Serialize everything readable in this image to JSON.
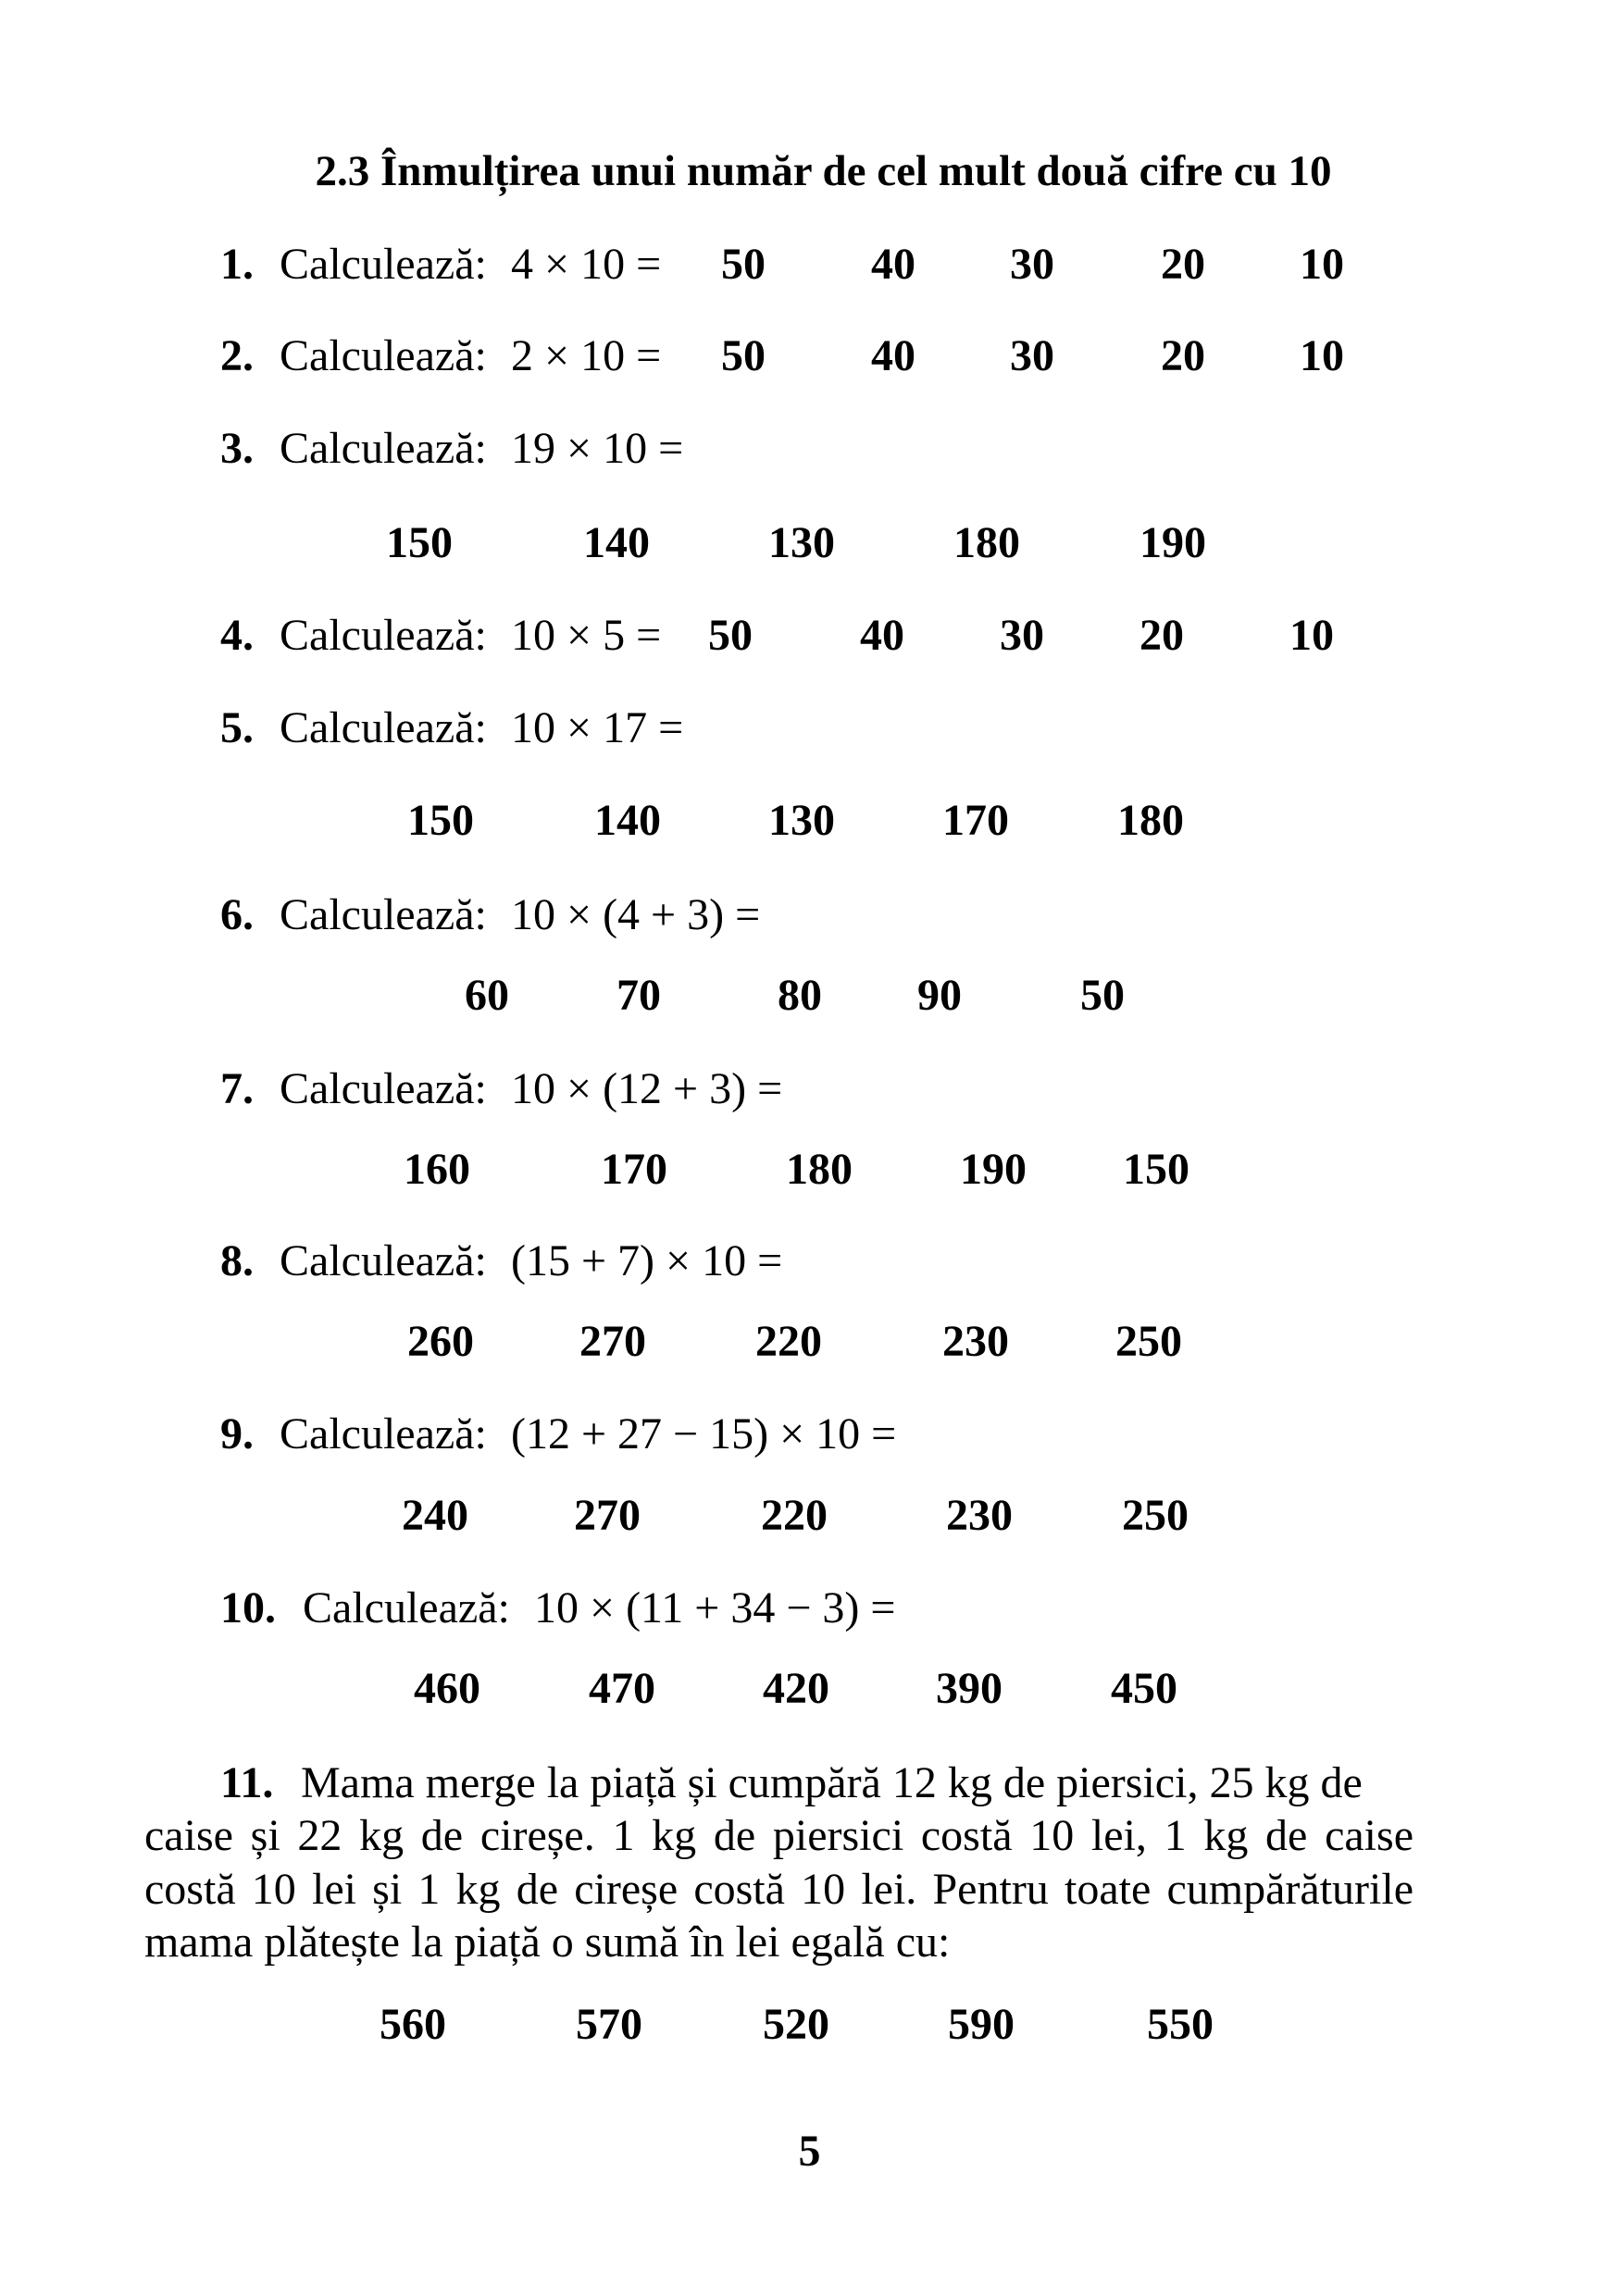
{
  "title": "2.3  Înmulțirea unui număr de cel mult două cifre cu 10",
  "label": "Calculează:",
  "questions": [
    {
      "number": "1.",
      "expression": "4 × 10 =",
      "options": [
        "50",
        "40",
        "30",
        "20",
        "10"
      ]
    },
    {
      "number": "2.",
      "expression": "2 × 10 =",
      "options": [
        "50",
        "40",
        "30",
        "20",
        "10"
      ]
    },
    {
      "number": "3.",
      "expression": "19 × 10 =",
      "options": [
        "150",
        "140",
        "130",
        "180",
        "190"
      ]
    },
    {
      "number": "4.",
      "expression": "10 × 5 =",
      "options": [
        "50",
        "40",
        "30",
        "20",
        "10"
      ]
    },
    {
      "number": "5.",
      "expression": "10 × 17 =",
      "options": [
        "150",
        "140",
        "130",
        "170",
        "180"
      ]
    },
    {
      "number": "6.",
      "expression": "10 × (4 + 3) =",
      "options": [
        "60",
        "70",
        "80",
        "90",
        "50"
      ]
    },
    {
      "number": "7.",
      "expression": "10 × (12 + 3) =",
      "options": [
        "160",
        "170",
        "180",
        "190",
        "150"
      ]
    },
    {
      "number": "8.",
      "expression": "(15 + 7) × 10 =",
      "options": [
        "260",
        "270",
        "220",
        "230",
        "250"
      ]
    },
    {
      "number": "9.",
      "expression": "(12 + 27 − 15) × 10 =",
      "options": [
        "240",
        "270",
        "220",
        "230",
        "250"
      ]
    },
    {
      "number": "10.",
      "expression": "10 × (11 + 34 − 3) =",
      "options": [
        "460",
        "470",
        "420",
        "390",
        "450"
      ]
    }
  ],
  "problem11": {
    "number": "11.",
    "lines": [
      "Mama merge la piață și cumpără 12 kg de piersici, 25 kg de",
      "caise și 22 kg de cireșe. 1 kg de piersici costă 10 lei, 1 kg de caise",
      "costă 10 lei și 1 kg de cireșe costă 10 lei. Pentru toate cumpărăturile",
      "mama plătește la piață o sumă în lei egală cu:"
    ],
    "options": [
      "560",
      "570",
      "520",
      "590",
      "550"
    ]
  },
  "page_number": "5"
}
